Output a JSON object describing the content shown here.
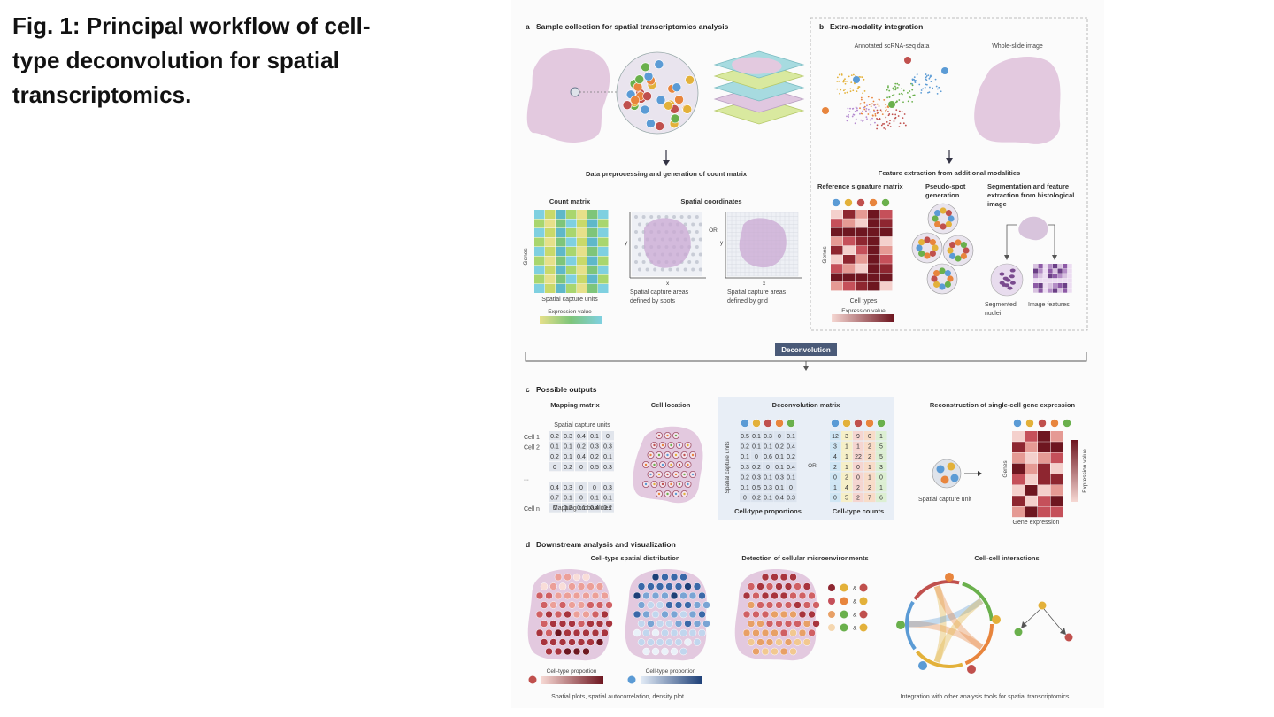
{
  "caption": "Fig. 1: Principal workflow of cell-type deconvolution for spatial transcriptomics.",
  "panel_a": {
    "title": "Sample collection for spatial transcriptomics analysis",
    "letter": "a",
    "preprocess_title": "Data preprocessing and generation of count matrix",
    "count_matrix_label": "Count matrix",
    "genes_label": "Genes",
    "spatial_units_label": "Spatial capture units",
    "expression_value_label": "Expression value",
    "spatial_coords_label": "Spatial coordinates",
    "or_label": "OR",
    "x_label": "x",
    "y_label": "y",
    "spots_label_1": "Spatial capture areas",
    "spots_label_2": "defined by spots",
    "grid_label_1": "Spatial capture areas",
    "grid_label_2": "defined by grid"
  },
  "panel_b": {
    "letter": "b",
    "title": "Extra-modality integration",
    "scrna_label": "Annotated scRNA-seq data",
    "wsi_label": "Whole-slide image",
    "feature_title": "Feature extraction from additional modalities",
    "ref_sig_label": "Reference signature matrix",
    "genes_label": "Genes",
    "cell_types_label": "Cell types",
    "expression_value_label": "Expression value",
    "pseudo_label_1": "Pseudo-spot",
    "pseudo_label_2": "generation",
    "seg_label_1": "Segmentation and feature",
    "seg_label_2": "extraction from histological",
    "seg_label_3": "image",
    "seg_nuclei_1": "Segmented",
    "seg_nuclei_2": "nuclei",
    "image_features_label": "Image features"
  },
  "deconvolution_label": "Deconvolution",
  "panel_c": {
    "letter": "c",
    "title": "Possible outputs",
    "mapping_title": "Mapping matrix",
    "spatial_units_label": "Spatial capture units",
    "row_labels": [
      "Cell 1",
      "Cell 2",
      "",
      "",
      "...",
      "",
      "",
      "Cell n"
    ],
    "mapping_values": [
      [
        "0.2",
        "0.3",
        "0.4",
        "0.1",
        "0"
      ],
      [
        "0.1",
        "0.1",
        "0.2",
        "0.3",
        "0.3"
      ],
      [
        "0.2",
        "0.1",
        "0.4",
        "0.2",
        "0.1"
      ],
      [
        "0",
        "0.2",
        "0",
        "0.5",
        "0.3"
      ],
      [
        "0.4",
        "0.3",
        "0",
        "0",
        "0.3"
      ],
      [
        "0.7",
        "0.1",
        "0",
        "0.1",
        "0.1"
      ],
      [
        "0",
        "0.3",
        "0.1",
        "0.4",
        "0.2"
      ]
    ],
    "mapping_probs_label": "Mapping probabilities",
    "cell_location_title": "Cell location",
    "deconv_matrix_title": "Deconvolution matrix",
    "spatial_units_vertical": "Spatial capture units",
    "proportions": [
      [
        "0.5",
        "0.1",
        "0.3",
        "0",
        "0.1"
      ],
      [
        "0.2",
        "0.1",
        "0.1",
        "0.2",
        "0.4"
      ],
      [
        "0.1",
        "0",
        "0.6",
        "0.1",
        "0.2"
      ],
      [
        "0.3",
        "0.2",
        "0",
        "0.1",
        "0.4"
      ],
      [
        "0.2",
        "0.3",
        "0.1",
        "0.3",
        "0.1"
      ],
      [
        "0.1",
        "0.5",
        "0.3",
        "0.1",
        "0"
      ],
      [
        "0",
        "0.2",
        "0.1",
        "0.4",
        "0.3"
      ]
    ],
    "or_label": "OR",
    "counts": [
      [
        "12",
        "3",
        "9",
        "0",
        "1"
      ],
      [
        "3",
        "1",
        "1",
        "2",
        "5"
      ],
      [
        "4",
        "1",
        "22",
        "2",
        "5"
      ],
      [
        "2",
        "1",
        "0",
        "1",
        "3"
      ],
      [
        "0",
        "2",
        "0",
        "1",
        "0"
      ],
      [
        "1",
        "4",
        "2",
        "2",
        "1"
      ],
      [
        "0",
        "5",
        "2",
        "7",
        "6"
      ]
    ],
    "proportions_label": "Cell-type proportions",
    "counts_label": "Cell-type counts",
    "recon_title": "Reconstruction of single-cell gene expression",
    "spatial_unit_label": "Spatial capture unit",
    "genes_label": "Genes",
    "expression_value_label": "Expression value",
    "gene_expression_label": "Gene expression"
  },
  "panel_d": {
    "letter": "d",
    "title": "Downstream analysis and visualization",
    "spatial_dist_title": "Cell-type spatial distribution",
    "proportion_label_1": "Cell-type proportion",
    "proportion_label_2": "Cell-type proportion",
    "spatial_plots_label": "Spatial plots, spatial autocorrelation, density plot",
    "microenv_title": "Detection of cellular microenvironments",
    "amp": "&",
    "cci_title": "Cell-cell interactions",
    "integration_label": "Integration with other analysis tools for spatial transcriptomics"
  },
  "colors": {
    "tissue": "#e3c9df",
    "blue_cell": "#5b9bd5",
    "orange_cell": "#e8853d",
    "red_cell": "#c0504d",
    "green_cell": "#6ab04c",
    "yellow_cell": "#e3b13a",
    "heat_dark": "#7a1c22",
    "heat_light": "#f4d0cc",
    "box_blue": "#e8eef6",
    "deconv_label_bg": "#4a5a78"
  }
}
